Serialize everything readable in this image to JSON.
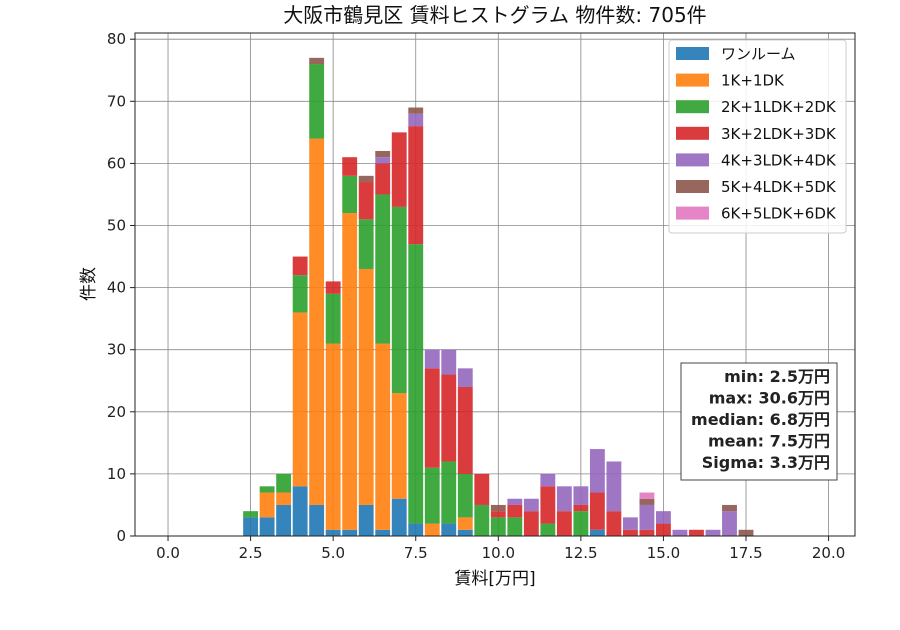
{
  "chart_data": {
    "type": "bar",
    "stacked": true,
    "title": "大阪市鶴見区 賃料ヒストグラム 物件数: 705件",
    "xlabel": "賃料[万円]",
    "ylabel": "件数",
    "xlim": [
      -1.0,
      20.8
    ],
    "ylim": [
      0,
      81
    ],
    "x_ticks": [
      "0.0",
      "2.5",
      "5.0",
      "7.5",
      "10.0",
      "12.5",
      "15.0",
      "17.5",
      "20.0"
    ],
    "y_ticks": [
      "0",
      "10",
      "20",
      "30",
      "40",
      "50",
      "60",
      "70",
      "80"
    ],
    "grid": true,
    "legend_position": "top-right",
    "bin_width": 0.5,
    "x": [
      2.5,
      3.0,
      3.5,
      4.0,
      4.5,
      5.0,
      5.5,
      6.0,
      6.5,
      7.0,
      7.5,
      8.0,
      8.5,
      9.0,
      9.5,
      10.0,
      10.5,
      11.0,
      11.5,
      12.0,
      12.5,
      13.0,
      13.5,
      14.0,
      14.5,
      15.0,
      15.5,
      16.0,
      16.5,
      17.0,
      17.5
    ],
    "series": [
      {
        "name": "ワンルーム",
        "color": "#1f77b4",
        "values": [
          3,
          3,
          5,
          8,
          5,
          1,
          1,
          5,
          1,
          6,
          2,
          0,
          2,
          1,
          0,
          0,
          0,
          0,
          0,
          0,
          0,
          1,
          0,
          0,
          0,
          0,
          0,
          0,
          0,
          0,
          0
        ]
      },
      {
        "name": "1K+1DK",
        "color": "#ff7f0e",
        "values": [
          0,
          4,
          2,
          28,
          59,
          30,
          51,
          38,
          30,
          17,
          0,
          2,
          0,
          2,
          0,
          0,
          0,
          0,
          0,
          0,
          0,
          0,
          0,
          0,
          0,
          0,
          0,
          0,
          0,
          0,
          0
        ]
      },
      {
        "name": "2K+1LDK+2DK",
        "color": "#2ca02c",
        "values": [
          1,
          1,
          3,
          6,
          12,
          8,
          6,
          8,
          24,
          30,
          45,
          9,
          10,
          7,
          5,
          3,
          3,
          0,
          2,
          0,
          4,
          0,
          0,
          0,
          0,
          0,
          0,
          0,
          0,
          0,
          0
        ]
      },
      {
        "name": "3K+2LDK+3DK",
        "color": "#d62728",
        "values": [
          0,
          0,
          0,
          3,
          0,
          2,
          3,
          6,
          5,
          12,
          19,
          16,
          14,
          14,
          5,
          1,
          2,
          4,
          6,
          4,
          1,
          6,
          4,
          1,
          1,
          2,
          0,
          1,
          0,
          0,
          0
        ]
      },
      {
        "name": "4K+3LDK+4DK",
        "color": "#9467bd",
        "values": [
          0,
          0,
          0,
          0,
          0,
          0,
          0,
          0,
          1,
          0,
          2,
          3,
          4,
          3,
          0,
          0,
          1,
          2,
          2,
          4,
          3,
          7,
          8,
          2,
          4,
          2,
          1,
          0,
          1,
          4,
          0
        ]
      },
      {
        "name": "5K+4LDK+5DK",
        "color": "#8c564b",
        "values": [
          0,
          0,
          0,
          0,
          1,
          0,
          0,
          1,
          1,
          0,
          1,
          0,
          0,
          0,
          0,
          1,
          0,
          0,
          0,
          0,
          0,
          0,
          0,
          0,
          1,
          0,
          0,
          0,
          0,
          1,
          1
        ]
      },
      {
        "name": "6K+5LDK+6DK",
        "color": "#e377c2",
        "values": [
          0,
          0,
          0,
          0,
          0,
          0,
          0,
          0,
          0,
          0,
          0,
          0,
          0,
          0,
          0,
          0,
          0,
          0,
          0,
          0,
          0,
          0,
          0,
          0,
          1,
          0,
          0,
          0,
          0,
          0,
          0
        ]
      }
    ],
    "stats_box": [
      "min: 2.5万円",
      "max: 30.6万円",
      "median: 6.8万円",
      "mean: 7.5万円",
      "Sigma: 3.3万円"
    ]
  }
}
